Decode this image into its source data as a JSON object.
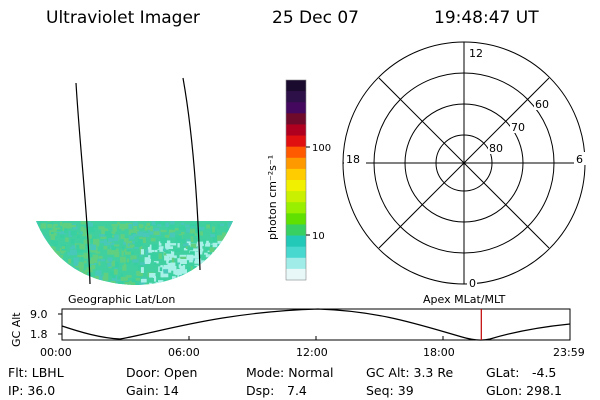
{
  "header": {
    "instrument": "Ultraviolet Imager",
    "date": "25 Dec 07",
    "time": "19:48:47 UT"
  },
  "colorbar": {
    "label": "photon cm⁻²s⁻¹",
    "ticks": [
      "100",
      "10"
    ],
    "colors": [
      "#1a0a2e",
      "#2e1048",
      "#44085e",
      "#700a2a",
      "#b00020",
      "#e01010",
      "#ff5a00",
      "#ff9900",
      "#ffcc00",
      "#f0f000",
      "#c8f000",
      "#98f000",
      "#60e000",
      "#38d060",
      "#22c8b8",
      "#48d8d0",
      "#a0ece8",
      "#e8f8f8"
    ]
  },
  "polar": {
    "mlt_labels": {
      "top": "12",
      "left": "18",
      "right": "6",
      "bottom": "0"
    },
    "lat_labels": [
      "60",
      "70",
      "80"
    ]
  },
  "map": {
    "geo_label": "Geographic Lat/Lon",
    "apex_label": "Apex MLat/MLT",
    "aurora_colors": [
      "#38d0a0",
      "#48c8b8",
      "#60d080",
      "#a8f0e8"
    ]
  },
  "altitude": {
    "ylabel": "GC Alt",
    "yticks": [
      "9.0",
      "1.8"
    ],
    "xticks": [
      "00:00",
      "06:00",
      "12:00",
      "18:00",
      "23:59"
    ],
    "marker_color": "#c00000",
    "marker_time_hours": 19.81
  },
  "footer": {
    "flt": "Flt: LBHL",
    "ip": "IP: 36.0",
    "door": "Door: Open",
    "gain": "Gain: 14",
    "mode": "Mode: Normal",
    "dsp_label": "Dsp:",
    "dsp_value": "7.4",
    "gcalt": "GC Alt: 3.3 Re",
    "seq": "Seq: 39",
    "glat_label": "GLat:",
    "glat_value": "-4.5",
    "glon": "GLon: 298.1"
  }
}
